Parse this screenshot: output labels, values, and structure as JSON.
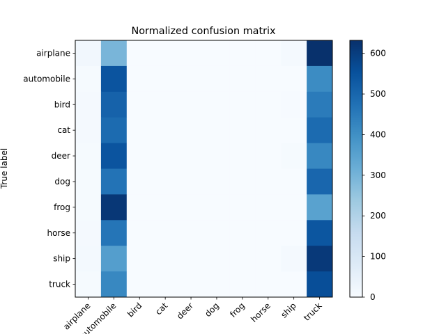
{
  "chart_data": {
    "type": "heatmap",
    "title": "Normalized confusion matrix",
    "ylabel": "True label",
    "xlabel": "",
    "rows": [
      "airplane",
      "automobile",
      "bird",
      "cat",
      "deer",
      "dog",
      "frog",
      "horse",
      "ship",
      "truck"
    ],
    "columns": [
      "airplane",
      "automobile",
      "bird",
      "cat",
      "deer",
      "dog",
      "frog",
      "horse",
      "ship",
      "truck"
    ],
    "values": [
      [
        18,
        295,
        0,
        0,
        0,
        0,
        0,
        0,
        8,
        630
      ],
      [
        5,
        545,
        0,
        0,
        0,
        0,
        0,
        0,
        0,
        410
      ],
      [
        8,
        510,
        0,
        0,
        0,
        0,
        0,
        0,
        3,
        450
      ],
      [
        10,
        490,
        0,
        0,
        0,
        0,
        0,
        0,
        0,
        490
      ],
      [
        5,
        545,
        0,
        0,
        0,
        0,
        0,
        0,
        5,
        420
      ],
      [
        5,
        470,
        0,
        0,
        0,
        0,
        0,
        0,
        0,
        500
      ],
      [
        5,
        615,
        0,
        0,
        0,
        0,
        0,
        0,
        0,
        350
      ],
      [
        8,
        465,
        0,
        0,
        0,
        0,
        0,
        0,
        0,
        540
      ],
      [
        12,
        360,
        0,
        0,
        0,
        0,
        0,
        0,
        10,
        610
      ],
      [
        5,
        420,
        0,
        0,
        0,
        0,
        0,
        0,
        0,
        560
      ]
    ],
    "colorbar": {
      "range": [
        0,
        632
      ],
      "ticks": [
        0,
        100,
        200,
        300,
        400,
        500,
        600
      ],
      "colormap": "Blues"
    },
    "grid": false
  }
}
